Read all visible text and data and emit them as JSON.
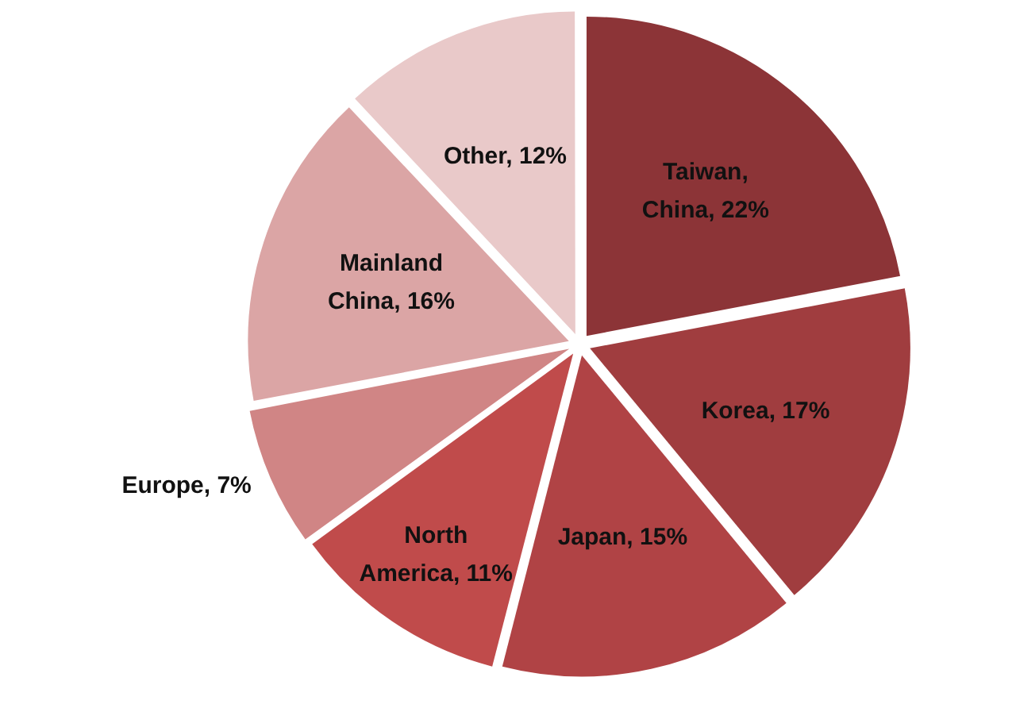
{
  "chart_data": {
    "type": "pie",
    "categories": [
      "Taiwan, China",
      "Korea",
      "Japan",
      "North America",
      "Europe",
      "Mainland China",
      "Other"
    ],
    "values": [
      22,
      17,
      15,
      11,
      7,
      16,
      12
    ],
    "value_labels": [
      "22%",
      "17%",
      "15%",
      "11%",
      "7%",
      "16%",
      "12%"
    ],
    "colors": [
      "#8c3437",
      "#a03d3f",
      "#b04345",
      "#c04b4b",
      "#d08585",
      "#dba5a5",
      "#e9c9c9"
    ],
    "legend": false
  }
}
